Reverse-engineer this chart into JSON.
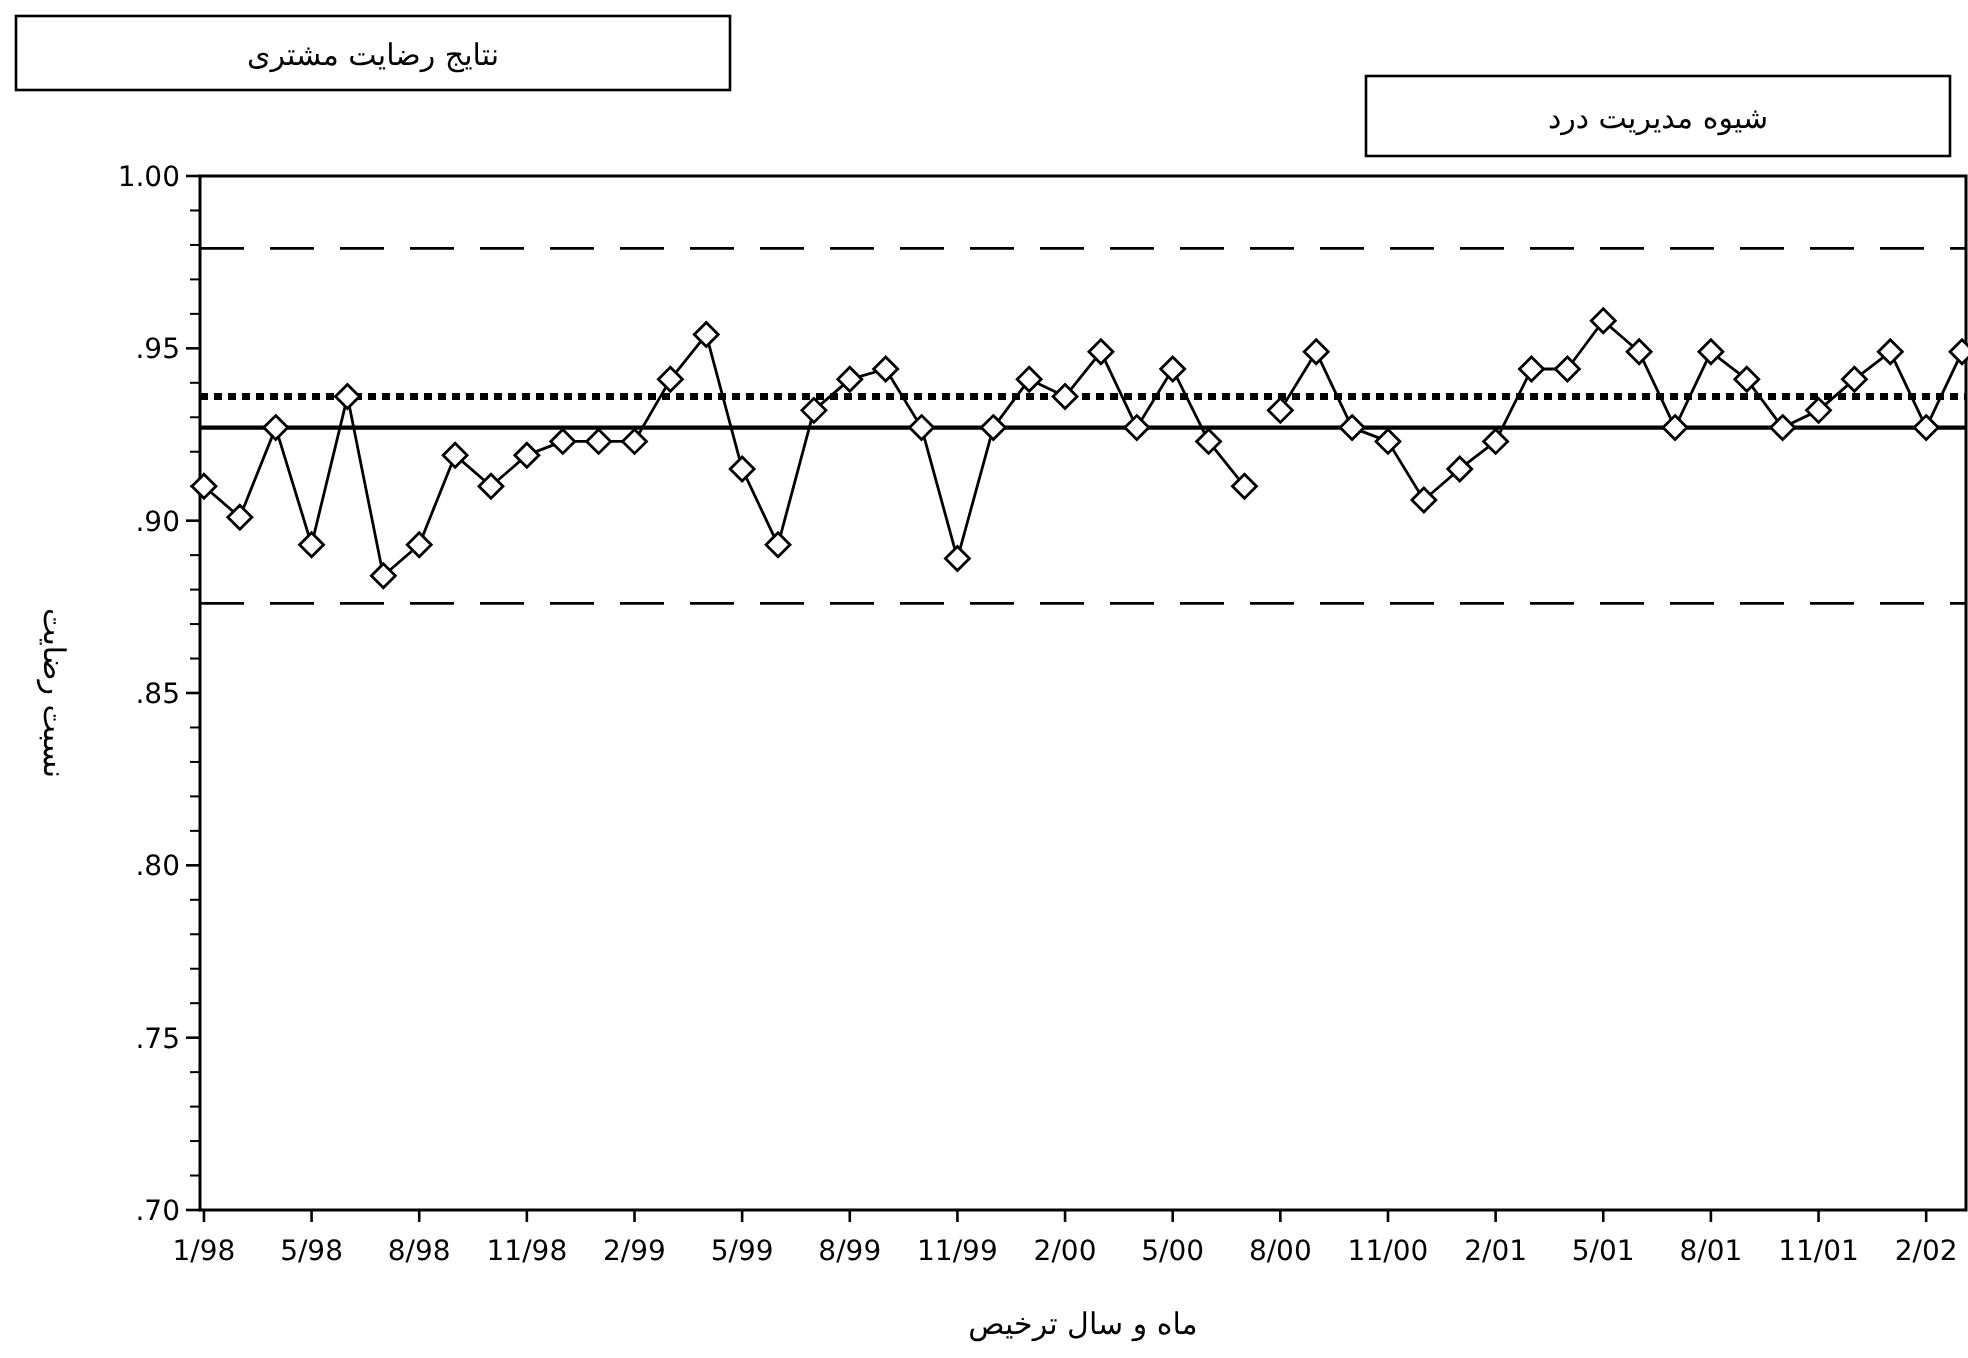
{
  "chart_data": {
    "type": "line",
    "annotations": [
      "نتایج رضایت مشتری",
      "شیوه مدیریت درد"
    ],
    "xlabel": "ماه و سال ترخیص",
    "ylabel": "نسبت رضایت",
    "categories": [
      "1/98",
      null,
      null,
      "5/98",
      null,
      null,
      "8/98",
      null,
      null,
      "11/98",
      null,
      null,
      "2/99",
      null,
      null,
      "5/99",
      null,
      null,
      "8/99",
      null,
      null,
      "11/99",
      null,
      null,
      "2/00",
      null,
      null,
      "5/00",
      null,
      null,
      "8/00",
      null,
      null,
      "11/00",
      null,
      null,
      "2/01",
      null,
      null,
      "5/01",
      null,
      null,
      "8/01",
      null,
      null,
      "11/01",
      null,
      null,
      "2/02",
      null
    ],
    "series": [
      {
        "color": "#000000",
        "values": [
          0.91,
          0.901,
          0.927,
          0.893,
          0.936,
          0.884,
          0.893,
          0.919,
          0.91,
          0.919,
          0.923,
          0.923,
          0.923,
          0.941,
          0.954,
          0.915,
          0.893,
          0.932,
          0.941,
          0.944,
          0.927,
          0.889,
          0.927,
          0.941,
          0.936,
          0.949,
          0.927,
          0.944,
          0.923,
          0.91,
          null,
          null,
          null,
          null,
          null,
          null,
          null,
          null,
          null,
          null,
          null,
          null,
          null,
          null,
          null,
          null,
          null,
          null,
          null,
          null
        ]
      },
      {
        "color": "#000000",
        "values": [
          null,
          null,
          null,
          null,
          null,
          null,
          null,
          null,
          null,
          null,
          null,
          null,
          null,
          null,
          null,
          null,
          null,
          null,
          null,
          null,
          null,
          null,
          null,
          null,
          null,
          null,
          null,
          null,
          null,
          null,
          0.932,
          0.949,
          0.927,
          0.923,
          0.906,
          0.915,
          0.923,
          0.944,
          0.944,
          0.958,
          0.949,
          0.927,
          0.949,
          0.941,
          0.927,
          0.932,
          0.941,
          0.949,
          0.927,
          0.949
        ]
      }
    ],
    "marker": "diamond",
    "line_style": "solid",
    "ylim": [
      0.7,
      1.0
    ],
    "yticks": [
      {
        "value": 0.7,
        "label": ".70"
      },
      {
        "value": 0.75,
        "label": ".75"
      },
      {
        "value": 0.8,
        "label": ".80"
      },
      {
        "value": 0.85,
        "label": ".85"
      },
      {
        "value": 0.9,
        "label": ".90"
      },
      {
        "value": 0.95,
        "label": ".95"
      },
      {
        "value": 1.0,
        "label": "1.00"
      }
    ],
    "ref_lines": [
      {
        "axis": "y",
        "value": 0.979,
        "color": "#000000",
        "line_style": "dashed"
      },
      {
        "axis": "y",
        "value": 0.936,
        "color": "#000000",
        "line_style": "dotted"
      },
      {
        "axis": "y",
        "value": 0.927,
        "color": "#000000",
        "line_style": "solid"
      },
      {
        "axis": "y",
        "value": 0.876,
        "color": "#000000",
        "line_style": "dashed"
      }
    ]
  }
}
